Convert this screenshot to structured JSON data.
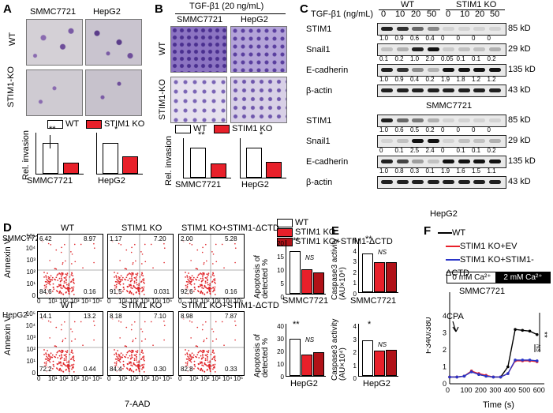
{
  "panelA": {
    "letter": "A",
    "cols": [
      "SMMC7721",
      "HepG2"
    ],
    "rows": [
      "WT",
      "STIM1-KO"
    ],
    "legend": [
      "WT",
      "STIM1 KO"
    ],
    "ylabel": "Rel. invasion",
    "sig": [
      "**",
      "*"
    ],
    "xlabels": [
      "SMMC7721",
      "HepG2"
    ]
  },
  "panelB": {
    "letter": "B",
    "treatment": "TGF-β1 (20 ng/mL)",
    "cols": [
      "SMMC7721",
      "HepG2"
    ],
    "rows": [
      "WT",
      "STIM1-KO"
    ],
    "legend": [
      "WT",
      "STIM1 KO"
    ],
    "ylabel": "Rel. invasion",
    "sig": [
      "**",
      "*"
    ],
    "xlabels": [
      "SMMC7721",
      "HepG2"
    ]
  },
  "panelC": {
    "letter": "C",
    "tgf_label": "TGF-β1 (ng/mL)",
    "group_wt": "WT",
    "group_ko": "STIM1 KO",
    "doses": [
      "0",
      "10",
      "20",
      "50",
      "0",
      "10",
      "20",
      "50"
    ],
    "cell1": "SMMC7721",
    "cell2": "HepG2",
    "blots_top": [
      {
        "name": "STIM1",
        "kd": "85 kD",
        "vals": [
          "1.0",
          "0.9",
          "0.6",
          "0.4",
          "0",
          "0",
          "0",
          "0"
        ]
      },
      {
        "name": "Snail1",
        "kd": "29 kD",
        "vals": [
          "0.1",
          "0.2",
          "1.0",
          "2.0",
          "0.05",
          "0.1",
          "0.1",
          "0.2"
        ]
      },
      {
        "name": "E-cadherin",
        "kd": "135 kD",
        "vals": [
          "1.0",
          "0.9",
          "0.4",
          "0.2",
          "1.9",
          "1.8",
          "1.2",
          "1.2"
        ]
      },
      {
        "name": "β-actin",
        "kd": "43 kD",
        "vals": []
      }
    ],
    "blots_bottom": [
      {
        "name": "STIM1",
        "kd": "85 kD",
        "vals": [
          "1.0",
          "0.6",
          "0.5",
          "0.2",
          "0",
          "0",
          "0",
          "0"
        ]
      },
      {
        "name": "Snail1",
        "kd": "29 kD",
        "vals": [
          "0",
          "0.1",
          "2.5",
          "2.4",
          "0",
          "0.1",
          "0.1",
          "0.2"
        ]
      },
      {
        "name": "E-cadherin",
        "kd": "135 kD",
        "vals": [
          "1.0",
          "0.8",
          "0.3",
          "0.1",
          "1.9",
          "1.6",
          "1.5",
          "1.1"
        ]
      },
      {
        "name": "β-actin",
        "kd": "43 kD",
        "vals": []
      }
    ]
  },
  "panelD": {
    "letter": "D",
    "legend": [
      "WT",
      "STIM1 KO",
      "STIM1 KO+STIM1-ΔCTD"
    ],
    "colors": {
      "wt": "#ffffff",
      "ko": "#e8202a",
      "ctd": "#b01218",
      "dots": "#e0262a",
      "bar_wt": "#ffffff"
    },
    "yaxis": "Annexin V",
    "xaxis": "7-AAD",
    "row1": {
      "cell": "SMMC7721",
      "plots": [
        {
          "title": "WT",
          "q": [
            "6.42",
            "8.97",
            "84.6",
            "0.16"
          ]
        },
        {
          "title": "STIM1 KO",
          "q": [
            "1.17",
            "7.20",
            "91.5",
            "0.031"
          ]
        },
        {
          "title": "STIM1 KO+STIM1-ΔCTD",
          "q": [
            "2.00",
            "5.28",
            "92.6",
            "0.16"
          ]
        }
      ]
    },
    "row2": {
      "cell": "HepG2",
      "plots": [
        {
          "title": "WT",
          "q": [
            "14.1",
            "13.2",
            "72.2",
            "0.44"
          ]
        },
        {
          "title": "STIM1 KO",
          "q": [
            "8.18",
            "7.10",
            "84.4",
            "0.30"
          ]
        },
        {
          "title": "STIM1 KO+STIM1-ΔCTD",
          "q": [
            "8.98",
            "7.87",
            "82.8",
            "0.33"
          ]
        }
      ]
    },
    "ticks_y": [
      "10⁵",
      "10⁴",
      "10³",
      "10²",
      "10¹",
      "0"
    ],
    "ticks_x": [
      "0",
      "10¹",
      "10²",
      "10³",
      "10⁴",
      "10⁵"
    ],
    "bar_ylabel": "Apoptosis of detected %",
    "bar1_ticks": [
      "20",
      "15",
      "10",
      "5",
      "0"
    ],
    "bar2_ticks": [
      "40",
      "30",
      "20",
      "10",
      "0"
    ],
    "sig": "**",
    "ns": "NS"
  },
  "panelE": {
    "letter": "E",
    "ylabel": "Caspase3 activity (AU×10⁴)",
    "top_ticks": [
      "5",
      "4",
      "3",
      "2",
      "1",
      "0"
    ],
    "bot_ticks": [
      "4",
      "3",
      "2",
      "1",
      "0"
    ],
    "top_cell": "SMMC7721",
    "bot_cell": "HepG2",
    "sig_top": "**",
    "sig_bot": "*",
    "ns": "NS"
  },
  "panelF": {
    "letter": "F",
    "legend": [
      "WT",
      "STIM1 KO+EV",
      "STIM1 KO+STIM1-ΔCTD"
    ],
    "colors": {
      "wt": "#000000",
      "ev": "#e8202a",
      "ctd": "#2a35c8"
    },
    "ca0": "0 mM Ca²⁺",
    "ca2": "2 mM Ca²⁺",
    "cell": "SMMC7721",
    "cpa": "CPA",
    "ylabel": "F340/380",
    "xlabel": "Time (s)",
    "sig": "**",
    "ns": "NS"
  },
  "chart_data": [
    {
      "type": "bar",
      "title": "Rel. invasion (A, SMMC7721)",
      "categories": [
        "WT",
        "STIM1 KO"
      ],
      "values": [
        1.0,
        0.32
      ],
      "ylabel": "Rel. invasion",
      "ylim": [
        0,
        1.4
      ]
    },
    {
      "type": "bar",
      "title": "Rel. invasion (A, HepG2)",
      "categories": [
        "WT",
        "STIM1 KO"
      ],
      "values": [
        1.0,
        0.55
      ],
      "ylabel": "Rel. invasion",
      "ylim": [
        0,
        1.4
      ]
    },
    {
      "type": "bar",
      "title": "Rel. invasion (B, SMMC7721)",
      "categories": [
        "WT",
        "STIM1 KO"
      ],
      "values": [
        1.0,
        0.42
      ],
      "ylabel": "Rel. invasion",
      "ylim": [
        0,
        1.4
      ]
    },
    {
      "type": "bar",
      "title": "Rel. invasion (B, HepG2)",
      "categories": [
        "WT",
        "STIM1 KO"
      ],
      "values": [
        1.0,
        0.5
      ],
      "ylabel": "Rel. invasion",
      "ylim": [
        0,
        1.4
      ]
    },
    {
      "type": "bar",
      "title": "Apoptosis (SMMC7721)",
      "categories": [
        "WT",
        "STIM1 KO",
        "STIM1 KO+STIM1-ΔCTD"
      ],
      "values": [
        15.4,
        8.4,
        7.3
      ],
      "ylabel": "Apoptosis of detected %",
      "ylim": [
        0,
        20
      ]
    },
    {
      "type": "bar",
      "title": "Apoptosis (HepG2)",
      "categories": [
        "WT",
        "STIM1 KO",
        "STIM1 KO+STIM1-ΔCTD"
      ],
      "values": [
        27.3,
        15.3,
        16.9
      ],
      "ylabel": "Apoptosis of detected %",
      "ylim": [
        0,
        40
      ]
    },
    {
      "type": "bar",
      "title": "Caspase3 (SMMC7721)",
      "categories": [
        "WT",
        "STIM1 KO",
        "STIM1 KO+STIM1-ΔCTD"
      ],
      "values": [
        3.5,
        2.7,
        2.7
      ],
      "ylabel": "Caspase3 activity (AU×10⁴)",
      "ylim": [
        0,
        5
      ]
    },
    {
      "type": "bar",
      "title": "Caspase3 (HepG2)",
      "categories": [
        "WT",
        "STIM1 KO",
        "STIM1 KO+STIM1-ΔCTD"
      ],
      "values": [
        2.6,
        1.8,
        1.9
      ],
      "ylabel": "Caspase3 activity (AU×10⁴)",
      "ylim": [
        0,
        4
      ]
    },
    {
      "type": "line",
      "title": "SMMC7721 Ca²⁺ imaging",
      "x": [
        0,
        50,
        100,
        150,
        200,
        250,
        300,
        350,
        400,
        450,
        500,
        550,
        600
      ],
      "series": [
        {
          "name": "WT",
          "values": [
            0.4,
            0.4,
            0.45,
            0.75,
            0.55,
            0.45,
            0.4,
            0.4,
            1.0,
            3.2,
            3.15,
            3.1,
            2.9
          ]
        },
        {
          "name": "STIM1 KO+EV",
          "values": [
            0.4,
            0.4,
            0.45,
            0.75,
            0.6,
            0.5,
            0.4,
            0.4,
            0.6,
            1.35,
            1.35,
            1.35,
            1.3
          ]
        },
        {
          "name": "STIM1 KO+STIM1-ΔCTD",
          "values": [
            0.4,
            0.4,
            0.45,
            0.7,
            0.55,
            0.45,
            0.4,
            0.4,
            0.6,
            1.4,
            1.4,
            1.4,
            1.35
          ]
        }
      ],
      "xlabel": "Time (s)",
      "ylabel": "F340/380",
      "ylim": [
        0,
        4
      ],
      "xlim": [
        0,
        650
      ],
      "xticks": [
        "0",
        "100",
        "200",
        "300",
        "400",
        "500",
        "600"
      ],
      "yticks": [
        "0",
        "1",
        "2",
        "3",
        "4"
      ]
    }
  ]
}
